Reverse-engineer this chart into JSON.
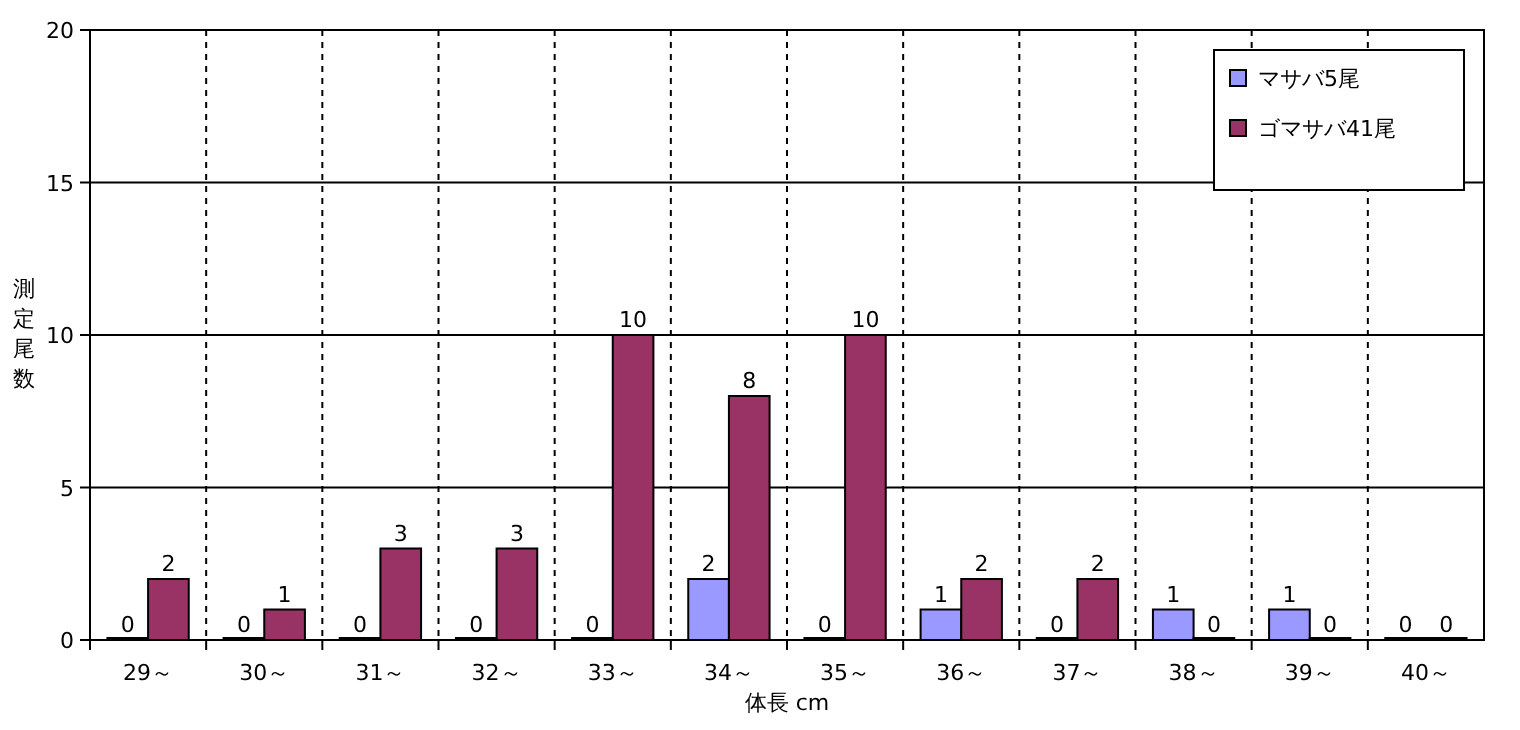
{
  "chart_data": {
    "type": "bar",
    "xlabel": "体長 cm",
    "ylabel": "測定尾数",
    "categories": [
      "29～",
      "30～",
      "31～",
      "32～",
      "33～",
      "34～",
      "35～",
      "36～",
      "37～",
      "38～",
      "39～",
      "40～"
    ],
    "series": [
      {
        "name": "マサバ5尾",
        "color": "#9999ff",
        "values": [
          0,
          0,
          0,
          0,
          0,
          2,
          0,
          1,
          0,
          1,
          1,
          0
        ]
      },
      {
        "name": "ゴマサバ41尾",
        "color": "#993366",
        "values": [
          2,
          1,
          3,
          3,
          10,
          8,
          10,
          2,
          2,
          0,
          0,
          0
        ]
      }
    ],
    "ylim": [
      0,
      20
    ],
    "yticks": [
      0,
      5,
      10,
      15,
      20
    ],
    "grid": true,
    "legend": "top right",
    "data_labels": true
  }
}
